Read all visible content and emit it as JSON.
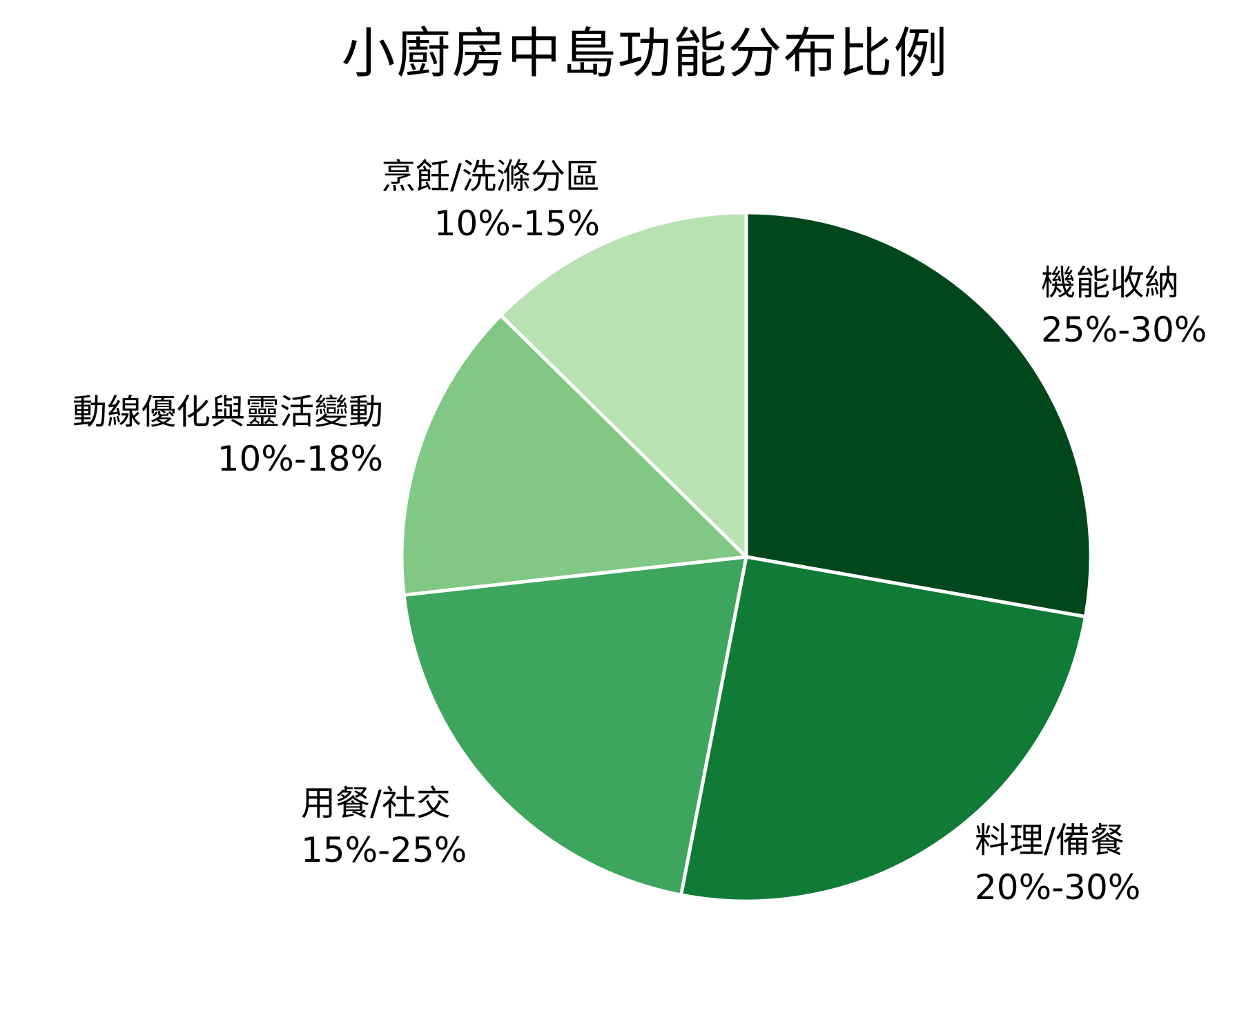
{
  "chart_data": {
    "type": "pie",
    "title": "小廚房中島功能分布比例",
    "start_angle_deg": 0,
    "direction": "clockwise",
    "colors": [
      "#00471b",
      "#107a37",
      "#3da55d",
      "#80c883",
      "#b8e2b2"
    ],
    "slice_border_color": "#ffffff",
    "legend": "none",
    "slices": [
      {
        "label": "機能收納",
        "range_text": "25%-30%",
        "value": 27.5,
        "color": "#00471b"
      },
      {
        "label": "料理/備餐",
        "range_text": "20%-30%",
        "value": 25,
        "color": "#107a37"
      },
      {
        "label": "用餐/社交",
        "range_text": "15%-25%",
        "value": 20,
        "color": "#3da55d"
      },
      {
        "label": "動線優化與靈活變動",
        "range_text": "10%-18%",
        "value": 14,
        "color": "#80c883"
      },
      {
        "label": "烹飪/洗滌分區",
        "range_text": "10%-15%",
        "value": 12.5,
        "color": "#b8e2b2"
      }
    ]
  },
  "labels": {
    "storage": {
      "name": "機能收納",
      "range": "25%-30%"
    },
    "prep": {
      "name": "料理/備餐",
      "range": "20%-30%"
    },
    "dining": {
      "name": "用餐/社交",
      "range": "15%-25%"
    },
    "flow": {
      "name": "動線優化與靈活變動",
      "range": "10%-18%"
    },
    "cooking": {
      "name": "烹飪/洗滌分區",
      "range": "10%-15%"
    }
  }
}
